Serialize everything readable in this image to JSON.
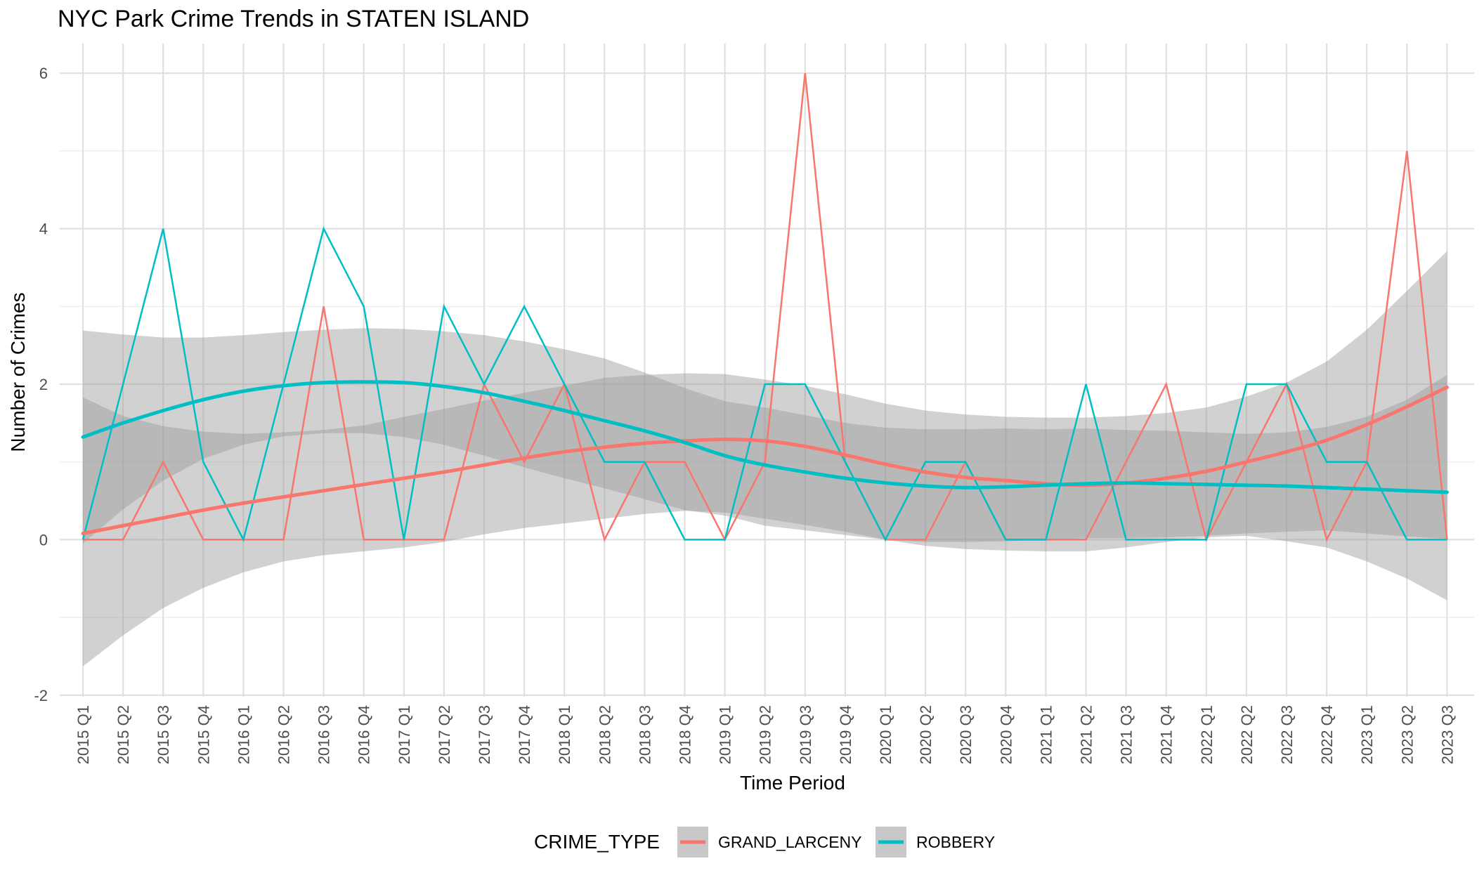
{
  "chart_data": {
    "type": "line",
    "title": "NYC Park Crime Trends in STATEN ISLAND",
    "xlabel": "Time Period",
    "ylabel": "Number of Crimes",
    "categories": [
      "2015 Q1",
      "2015 Q2",
      "2015 Q3",
      "2015 Q4",
      "2016 Q1",
      "2016 Q2",
      "2016 Q3",
      "2016 Q4",
      "2017 Q1",
      "2017 Q2",
      "2017 Q3",
      "2017 Q4",
      "2018 Q1",
      "2018 Q2",
      "2018 Q3",
      "2018 Q4",
      "2019 Q1",
      "2019 Q2",
      "2019 Q3",
      "2019 Q4",
      "2020 Q1",
      "2020 Q2",
      "2020 Q3",
      "2020 Q4",
      "2021 Q1",
      "2021 Q2",
      "2021 Q3",
      "2021 Q4",
      "2022 Q1",
      "2022 Q2",
      "2022 Q3",
      "2022 Q4",
      "2023 Q1",
      "2023 Q2",
      "2023 Q3"
    ],
    "ylim": [
      -2,
      6.4
    ],
    "yticks": [
      -2,
      0,
      2,
      4,
      6
    ],
    "grid": true,
    "legend": {
      "title": "CRIME_TYPE",
      "position": "bottom"
    },
    "series": [
      {
        "name": "GRAND_LARCENY",
        "color": "#F8766D",
        "values": [
          0,
          0,
          1,
          0,
          0,
          0,
          3,
          0,
          0,
          0,
          2,
          1,
          2,
          0,
          1,
          1,
          0,
          1,
          6,
          1,
          0,
          0,
          1,
          0,
          0,
          0,
          1,
          2,
          0,
          1,
          2,
          0,
          1,
          5,
          0
        ],
        "smooth": [
          0.08,
          0.18,
          0.28,
          0.38,
          0.47,
          0.55,
          0.63,
          0.71,
          0.79,
          0.87,
          0.96,
          1.05,
          1.13,
          1.19,
          1.24,
          1.27,
          1.29,
          1.27,
          1.2,
          1.09,
          0.97,
          0.87,
          0.8,
          0.76,
          0.72,
          0.7,
          0.73,
          0.79,
          0.88,
          1.0,
          1.13,
          1.28,
          1.48,
          1.71,
          1.96
        ],
        "ci_lower": [
          -1.63,
          -1.23,
          -0.88,
          -0.62,
          -0.42,
          -0.28,
          -0.2,
          -0.15,
          -0.1,
          -0.03,
          0.07,
          0.15,
          0.21,
          0.27,
          0.33,
          0.37,
          0.35,
          0.27,
          0.19,
          0.1,
          0.0,
          -0.08,
          -0.12,
          -0.14,
          -0.15,
          -0.15,
          -0.1,
          -0.03,
          0.03,
          0.05,
          -0.02,
          -0.1,
          -0.28,
          -0.5,
          -0.78
        ],
        "ci_upper": [
          1.83,
          1.59,
          1.46,
          1.39,
          1.36,
          1.38,
          1.41,
          1.47,
          1.58,
          1.68,
          1.79,
          1.89,
          1.98,
          2.08,
          2.12,
          2.14,
          2.13,
          2.06,
          1.98,
          1.87,
          1.75,
          1.66,
          1.61,
          1.58,
          1.57,
          1.57,
          1.59,
          1.63,
          1.7,
          1.84,
          2.02,
          2.29,
          2.7,
          3.2,
          3.71
        ]
      },
      {
        "name": "ROBBERY",
        "color": "#00BFC4",
        "values": [
          0,
          2,
          4,
          1,
          0,
          2,
          4,
          3,
          0,
          3,
          2,
          3,
          2,
          1,
          1,
          0,
          0,
          2,
          2,
          1,
          0,
          1,
          1,
          0,
          0,
          2,
          0,
          0,
          0,
          2,
          2,
          1,
          1,
          0,
          0
        ],
        "smooth": [
          1.32,
          1.5,
          1.66,
          1.8,
          1.91,
          1.98,
          2.02,
          2.03,
          2.02,
          1.97,
          1.89,
          1.78,
          1.66,
          1.53,
          1.4,
          1.25,
          1.08,
          0.96,
          0.87,
          0.79,
          0.73,
          0.69,
          0.67,
          0.68,
          0.7,
          0.72,
          0.73,
          0.72,
          0.71,
          0.7,
          0.69,
          0.67,
          0.65,
          0.63,
          0.61
        ],
        "ci_lower": [
          -0.05,
          0.39,
          0.76,
          1.04,
          1.22,
          1.33,
          1.37,
          1.37,
          1.32,
          1.22,
          1.08,
          0.93,
          0.79,
          0.66,
          0.52,
          0.38,
          0.31,
          0.18,
          0.12,
          0.06,
          0.0,
          -0.03,
          -0.03,
          -0.02,
          0.0,
          0.02,
          0.02,
          0.03,
          0.05,
          0.08,
          0.1,
          0.12,
          0.08,
          0.04,
          0.01
        ],
        "ci_upper": [
          2.69,
          2.64,
          2.6,
          2.6,
          2.63,
          2.67,
          2.7,
          2.72,
          2.71,
          2.68,
          2.63,
          2.55,
          2.45,
          2.33,
          2.15,
          1.95,
          1.78,
          1.7,
          1.6,
          1.5,
          1.44,
          1.42,
          1.42,
          1.43,
          1.42,
          1.43,
          1.41,
          1.4,
          1.38,
          1.36,
          1.38,
          1.45,
          1.58,
          1.8,
          2.12
        ]
      }
    ]
  }
}
